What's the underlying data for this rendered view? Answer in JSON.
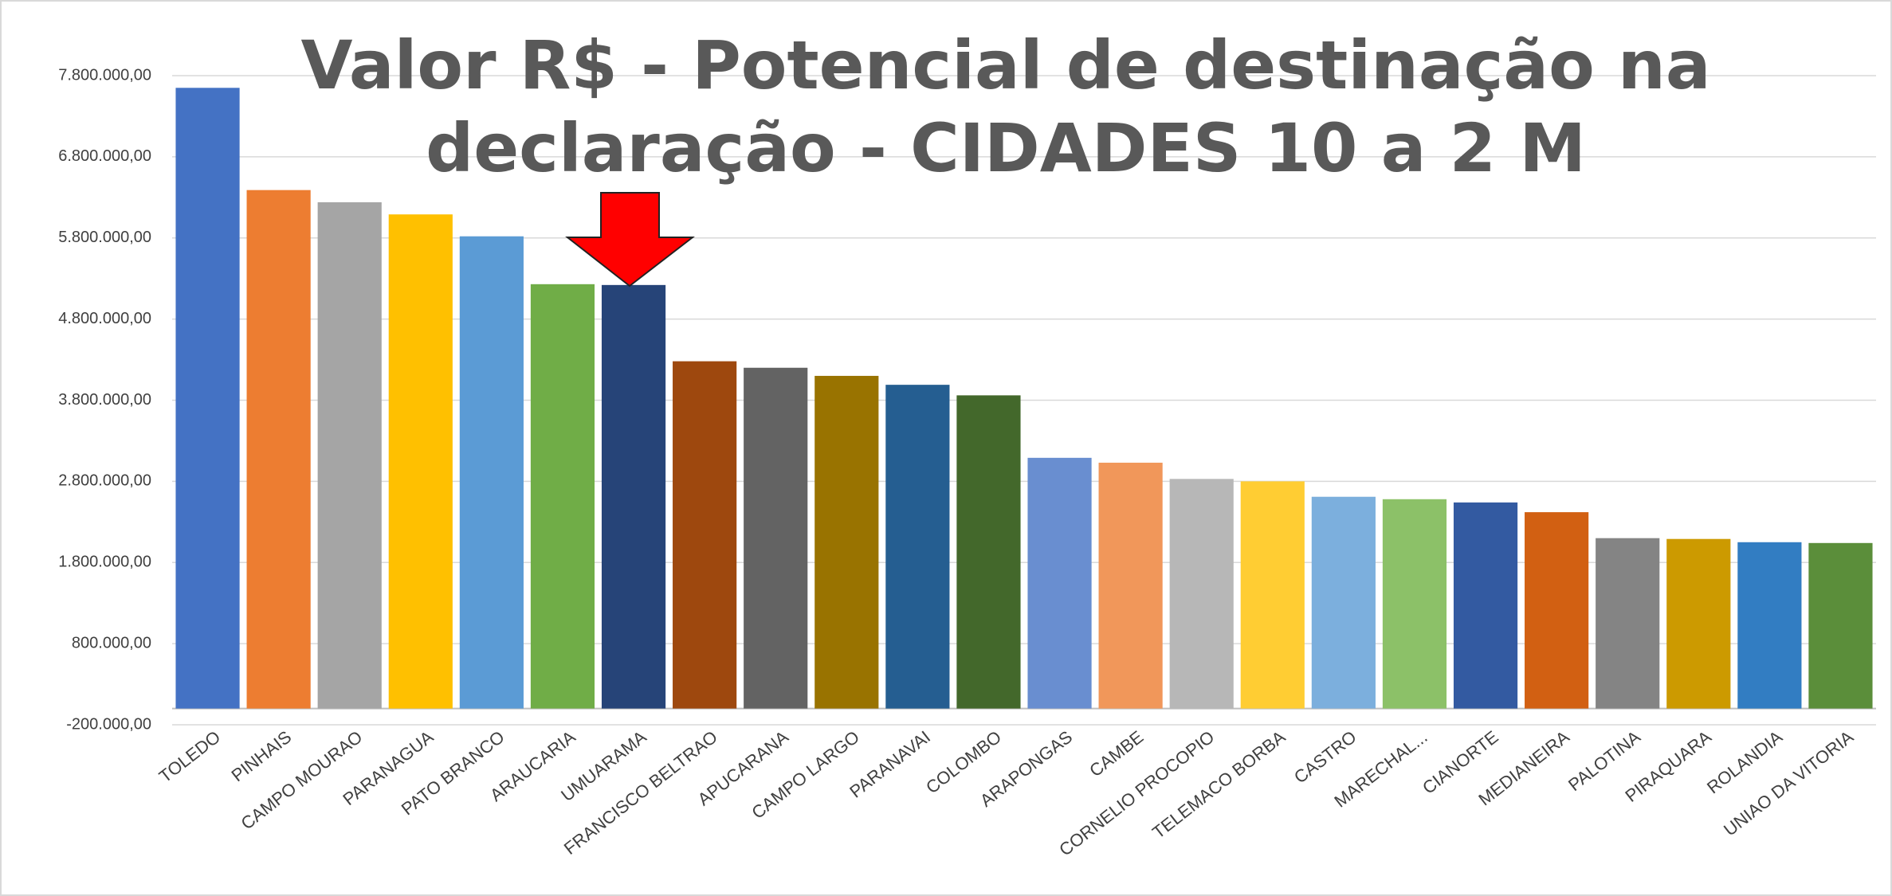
{
  "chart_data": {
    "type": "bar",
    "title": [
      "Valor R$ - Potencial de destinação na",
      "declaração - CIDADES 10 a 2 M"
    ],
    "categories": [
      "TOLEDO",
      "PINHAIS",
      "CAMPO MOURAO",
      "PARANAGUA",
      "PATO BRANCO",
      "ARAUCARIA",
      "UMUARAMA",
      "FRANCISCO BELTRAO",
      "APUCARANA",
      "CAMPO LARGO",
      "PARANAVAI",
      "COLOMBO",
      "ARAPONGAS",
      "CAMBE",
      "CORNELIO PROCOPIO",
      "TELEMACO BORBA",
      "CASTRO",
      "MARECHAL...",
      "CIANORTE",
      "MEDIANEIRA",
      "PALOTINA",
      "PIRAQUARA",
      "ROLANDIA",
      "UNIAO DA VITORIA"
    ],
    "values": [
      7650000,
      6390000,
      6240000,
      6090000,
      5820000,
      5230000,
      5220000,
      4280000,
      4200000,
      4100000,
      3990000,
      3860000,
      3090000,
      3030000,
      2830000,
      2800000,
      2610000,
      2580000,
      2540000,
      2420000,
      2100000,
      2090000,
      2050000,
      2040000
    ],
    "colors": [
      "#4472C4",
      "#ED7D31",
      "#A5A5A5",
      "#FFC000",
      "#5B9BD5",
      "#70AD47",
      "#264478",
      "#9E480E",
      "#636363",
      "#997300",
      "#255E91",
      "#43682B",
      "#698ED0",
      "#F1975A",
      "#B7B7B7",
      "#FFCD33",
      "#7CAFDD",
      "#8CC168",
      "#335AA1",
      "#D26012",
      "#848484",
      "#CC9A00",
      "#327DC2",
      "#5B8E3A"
    ],
    "ylim": [
      -200000,
      7800000
    ],
    "yticks": [
      {
        "value": -200000,
        "label": "-200.000,00"
      },
      {
        "value": 800000,
        "label": "800.000,00"
      },
      {
        "value": 1800000,
        "label": "1.800.000,00"
      },
      {
        "value": 2800000,
        "label": "2.800.000,00"
      },
      {
        "value": 3800000,
        "label": "3.800.000,00"
      },
      {
        "value": 4800000,
        "label": "4.800.000,00"
      },
      {
        "value": 5800000,
        "label": "5.800.000,00"
      },
      {
        "value": 6800000,
        "label": "6.800.000,00"
      },
      {
        "value": 7800000,
        "label": "7.800.000,00"
      }
    ],
    "grid": true
  }
}
